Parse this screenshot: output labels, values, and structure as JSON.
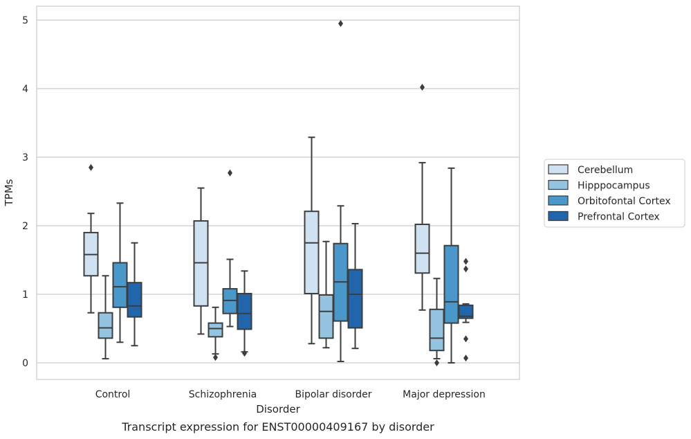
{
  "caption": "Transcript expression for ENST00000409167 by disorder",
  "chart_data": {
    "type": "box",
    "xlabel": "Disorder",
    "ylabel": "TPMs",
    "ylim": [
      -0.25,
      5.2
    ],
    "yticks": [
      0,
      1,
      2,
      3,
      4,
      5
    ],
    "grid": "horizontal",
    "legend_placement": "right",
    "categories": [
      "Control",
      "Schizophrenia",
      "Bipolar disorder",
      "Major depression"
    ],
    "series": [
      {
        "name": "Cerebellum",
        "color": "#d0e1f2",
        "boxes": [
          {
            "whislo": 0.73,
            "q1": 1.27,
            "med": 1.58,
            "q3": 1.9,
            "whishi": 2.18,
            "fliers": [
              2.85
            ]
          },
          {
            "whislo": 0.42,
            "q1": 0.83,
            "med": 1.46,
            "q3": 2.07,
            "whishi": 2.55,
            "fliers": []
          },
          {
            "whislo": 0.28,
            "q1": 1.01,
            "med": 1.75,
            "q3": 2.21,
            "whishi": 3.29,
            "fliers": []
          },
          {
            "whislo": 0.77,
            "q1": 1.31,
            "med": 1.6,
            "q3": 2.02,
            "whishi": 2.92,
            "fliers": [
              4.02
            ]
          }
        ]
      },
      {
        "name": "Hipppocampus",
        "color": "#94c4df",
        "boxes": [
          {
            "whislo": 0.06,
            "q1": 0.36,
            "med": 0.51,
            "q3": 0.73,
            "whishi": 1.27,
            "fliers": []
          },
          {
            "whislo": 0.13,
            "q1": 0.38,
            "med": 0.5,
            "q3": 0.58,
            "whishi": 0.81,
            "fliers": [
              0.08
            ]
          },
          {
            "whislo": 0.22,
            "q1": 0.36,
            "med": 0.75,
            "q3": 0.99,
            "whishi": 1.77,
            "fliers": []
          },
          {
            "whislo": 0.06,
            "q1": 0.18,
            "med": 0.36,
            "q3": 0.78,
            "whishi": 1.23,
            "fliers": [
              0.0
            ]
          }
        ]
      },
      {
        "name": "Orbitofontal Cortex",
        "color": "#4a98c9",
        "boxes": [
          {
            "whislo": 0.3,
            "q1": 0.81,
            "med": 1.11,
            "q3": 1.46,
            "whishi": 2.33,
            "fliers": []
          },
          {
            "whislo": 0.53,
            "q1": 0.72,
            "med": 0.91,
            "q3": 1.08,
            "whishi": 1.51,
            "fliers": [
              2.77
            ]
          },
          {
            "whislo": 0.02,
            "q1": 0.61,
            "med": 1.18,
            "q3": 1.74,
            "whishi": 2.29,
            "fliers": [
              4.95
            ]
          },
          {
            "whislo": 0.0,
            "q1": 0.58,
            "med": 0.89,
            "q3": 1.71,
            "whishi": 2.84,
            "fliers": []
          }
        ]
      },
      {
        "name": "Prefrontal Cortex",
        "color": "#2166ac",
        "boxes": [
          {
            "whislo": 0.25,
            "q1": 0.67,
            "med": 0.83,
            "q3": 1.17,
            "whishi": 1.75,
            "fliers": []
          },
          {
            "whislo": 0.16,
            "q1": 0.49,
            "med": 0.72,
            "q3": 1.01,
            "whishi": 1.34,
            "fliers": [
              0.14
            ]
          },
          {
            "whislo": 0.21,
            "q1": 0.51,
            "med": 1.0,
            "q3": 1.36,
            "whishi": 2.03,
            "fliers": []
          },
          {
            "whislo": 0.59,
            "q1": 0.65,
            "med": 0.68,
            "q3": 0.84,
            "whishi": 0.86,
            "fliers": [
              0.07,
              0.35,
              1.37,
              1.48
            ]
          }
        ]
      }
    ]
  }
}
